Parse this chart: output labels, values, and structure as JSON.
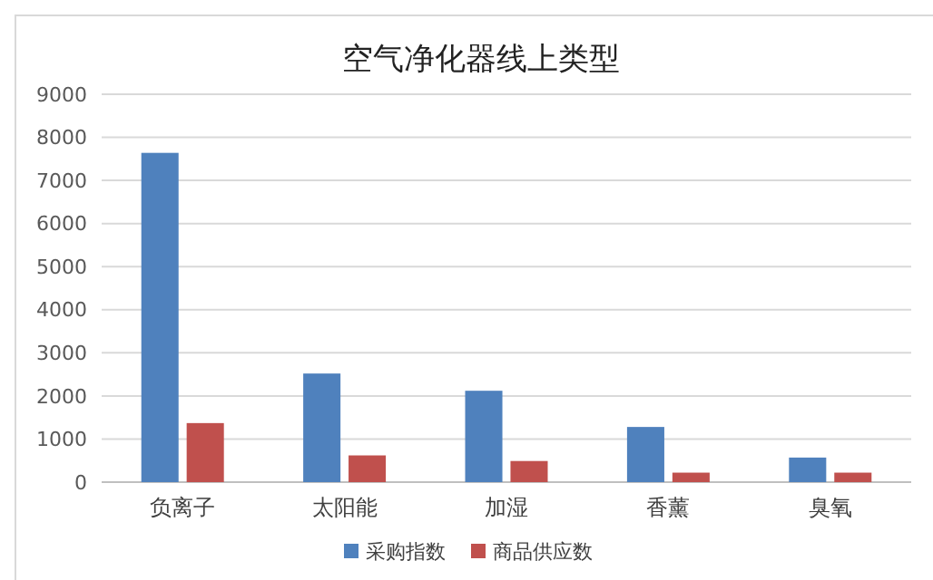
{
  "chart_data": {
    "type": "bar",
    "title": "空气净化器线上类型",
    "categories": [
      "负离子",
      "太阳能",
      "加湿",
      "香薰",
      "臭氧"
    ],
    "series": [
      {
        "name": "采购指数",
        "color": "#4f81bd",
        "values": [
          7640,
          2520,
          2120,
          1280,
          570
        ]
      },
      {
        "name": "商品供应数",
        "color": "#c0504d",
        "values": [
          1370,
          620,
          490,
          220,
          220
        ]
      }
    ],
    "ylim": [
      0,
      9000
    ],
    "yticks": [
      0,
      1000,
      2000,
      3000,
      4000,
      5000,
      6000,
      7000,
      8000,
      9000
    ],
    "grid": "y",
    "legend": "bottom"
  }
}
